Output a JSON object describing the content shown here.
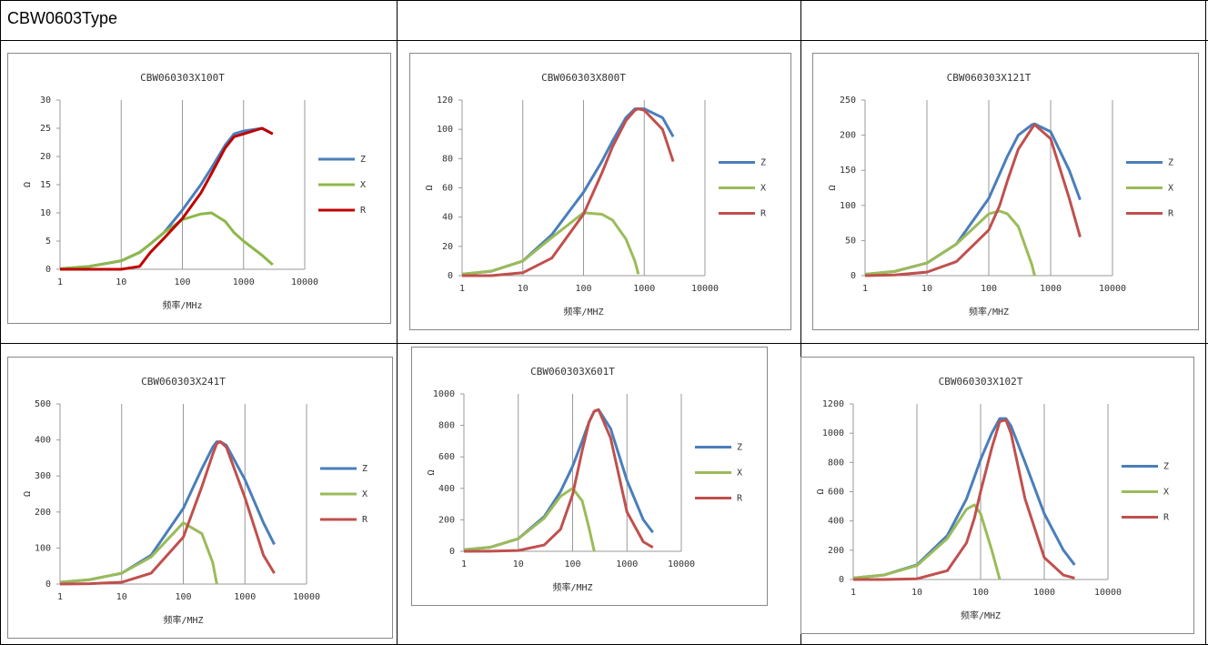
{
  "table": {
    "title": "CBW0603Type"
  },
  "chart_data": [
    {
      "type": "line",
      "title": "CBW060303X100T",
      "x_label": "频率/MHz",
      "y_label": "Ω",
      "xscale": "log",
      "grid": "x",
      "legend": "right",
      "xlim": [
        1,
        10000
      ],
      "xticks": [
        1,
        10,
        100,
        1000,
        10000
      ],
      "ylim": [
        0,
        30
      ],
      "yticks": [
        0,
        5,
        10,
        15,
        20,
        25,
        30
      ],
      "x": [
        1,
        3,
        10,
        20,
        30,
        50,
        100,
        200,
        300,
        500,
        700,
        1000,
        2000,
        3000
      ],
      "series": [
        {
          "name": "Z",
          "color": "#4a7ebb",
          "values": [
            0.1,
            0.5,
            1.5,
            3,
            4.5,
            6.5,
            10.5,
            15,
            18,
            22,
            24,
            24.5,
            25,
            24
          ]
        },
        {
          "name": "X",
          "color": "#8db84a",
          "values": [
            0.1,
            0.5,
            1.5,
            3,
            4.5,
            6.5,
            8.8,
            9.8,
            10,
            8.5,
            6.5,
            5,
            2.5,
            0.8
          ]
        },
        {
          "name": "R",
          "color": "#c00000",
          "values": [
            0,
            0,
            0,
            0.5,
            3,
            5.5,
            9,
            13.5,
            17,
            21.5,
            23.5,
            24,
            25,
            24
          ]
        }
      ]
    },
    {
      "type": "line",
      "title": "CBW060303X800T",
      "x_label": "频率/MHZ",
      "y_label": "Ω",
      "xscale": "log",
      "grid": "x",
      "legend": "right",
      "xlim": [
        1,
        10000
      ],
      "xticks": [
        1,
        10,
        100,
        1000,
        10000
      ],
      "ylim": [
        0,
        120
      ],
      "yticks": [
        0,
        20,
        40,
        60,
        80,
        100,
        120
      ],
      "x": [
        1,
        3,
        10,
        30,
        100,
        200,
        300,
        500,
        700,
        800,
        1000,
        2000,
        3000
      ],
      "series": [
        {
          "name": "Z",
          "color": "#4a7ebb",
          "values": [
            1,
            3,
            10,
            28,
            57,
            78,
            92,
            108,
            114,
            114,
            114,
            108,
            95
          ]
        },
        {
          "name": "X",
          "color": "#9bbb59",
          "values": [
            1,
            3,
            10,
            26,
            43,
            42,
            38,
            25,
            10,
            1,
            null,
            null,
            null
          ]
        },
        {
          "name": "R",
          "color": "#c0504d",
          "values": [
            0,
            0,
            2,
            12,
            42,
            70,
            88,
            106,
            113,
            114,
            113,
            100,
            78
          ]
        }
      ]
    },
    {
      "type": "line",
      "title": "CBW060303X121T",
      "x_label": "频率/MHZ",
      "y_label": "Ω",
      "xscale": "log",
      "grid": "x",
      "legend": "right",
      "xlim": [
        1,
        10000
      ],
      "xticks": [
        1,
        10,
        100,
        1000,
        10000
      ],
      "ylim": [
        0,
        250
      ],
      "yticks": [
        0,
        50,
        100,
        150,
        200,
        250
      ],
      "x": [
        1,
        3,
        10,
        30,
        100,
        150,
        200,
        300,
        500,
        550,
        1000,
        2000,
        3000
      ],
      "series": [
        {
          "name": "Z",
          "color": "#4a7ebb",
          "values": [
            2,
            6,
            18,
            45,
            110,
            145,
            170,
            200,
            215,
            216,
            205,
            150,
            108
          ]
        },
        {
          "name": "X",
          "color": "#9bbb59",
          "values": [
            2,
            6,
            18,
            45,
            88,
            92,
            88,
            70,
            15,
            0,
            null,
            null,
            null
          ]
        },
        {
          "name": "R",
          "color": "#c0504d",
          "values": [
            0,
            1,
            5,
            20,
            65,
            100,
            135,
            180,
            210,
            215,
            195,
            110,
            55
          ]
        }
      ]
    },
    {
      "type": "line",
      "title": "CBW060303X241T",
      "x_label": "频率/MHZ",
      "y_label": "Ω",
      "xscale": "log",
      "grid": "x",
      "legend": "right",
      "xlim": [
        1,
        10000
      ],
      "xticks": [
        1,
        10,
        100,
        1000,
        10000
      ],
      "ylim": [
        0,
        500
      ],
      "yticks": [
        0,
        100,
        200,
        300,
        400,
        500
      ],
      "x": [
        1,
        3,
        10,
        30,
        100,
        200,
        300,
        350,
        400,
        500,
        1000,
        2000,
        3000
      ],
      "series": [
        {
          "name": "Z",
          "color": "#4a7ebb",
          "values": [
            5,
            12,
            30,
            80,
            210,
            320,
            380,
            395,
            395,
            385,
            290,
            170,
            110
          ]
        },
        {
          "name": "X",
          "color": "#9bbb59",
          "values": [
            5,
            12,
            30,
            75,
            170,
            140,
            60,
            0,
            null,
            null,
            null,
            null,
            null
          ]
        },
        {
          "name": "R",
          "color": "#c0504d",
          "values": [
            0,
            1,
            5,
            30,
            130,
            270,
            360,
            390,
            395,
            380,
            240,
            80,
            30
          ]
        }
      ]
    },
    {
      "type": "line",
      "title": "CBW060303X601T",
      "x_label": "频率/MHZ",
      "y_label": "Ω",
      "xscale": "log",
      "grid": "x",
      "legend": "right",
      "xlim": [
        1,
        10000
      ],
      "xticks": [
        1,
        10,
        100,
        1000,
        10000
      ],
      "ylim": [
        0,
        1000
      ],
      "yticks": [
        0,
        200,
        400,
        600,
        800,
        1000
      ],
      "x": [
        1,
        3,
        10,
        30,
        60,
        100,
        150,
        200,
        250,
        300,
        500,
        1000,
        2000,
        3000
      ],
      "series": [
        {
          "name": "Z",
          "color": "#4a7ebb",
          "values": [
            10,
            25,
            80,
            220,
            380,
            540,
            700,
            820,
            890,
            900,
            780,
            450,
            200,
            120
          ]
        },
        {
          "name": "X",
          "color": "#9bbb59",
          "values": [
            10,
            25,
            80,
            210,
            350,
            400,
            320,
            150,
            0,
            null,
            null,
            null,
            null,
            null
          ]
        },
        {
          "name": "R",
          "color": "#c0504d",
          "values": [
            0,
            1,
            5,
            40,
            140,
            360,
            640,
            820,
            890,
            900,
            720,
            250,
            60,
            25
          ]
        }
      ]
    },
    {
      "type": "line",
      "title": "CBW060303X102T",
      "x_label": "频率/MHZ",
      "y_label": "Ω",
      "xscale": "log",
      "grid": "x",
      "legend": "right",
      "xlim": [
        1,
        10000
      ],
      "xticks": [
        1,
        10,
        100,
        1000,
        10000
      ],
      "ylim": [
        0,
        1200
      ],
      "yticks": [
        0,
        200,
        400,
        600,
        800,
        1000,
        1200
      ],
      "x": [
        1,
        3,
        10,
        30,
        60,
        80,
        100,
        150,
        200,
        250,
        300,
        500,
        1000,
        2000,
        3000
      ],
      "series": [
        {
          "name": "Z",
          "color": "#4a7ebb",
          "values": [
            10,
            30,
            100,
            300,
            550,
            700,
            820,
            1000,
            1100,
            1100,
            1050,
            800,
            450,
            200,
            100
          ]
        },
        {
          "name": "X",
          "color": "#9bbb59",
          "values": [
            10,
            30,
            95,
            280,
            480,
            510,
            450,
            200,
            0,
            null,
            null,
            null,
            null,
            null,
            null
          ]
        },
        {
          "name": "R",
          "color": "#c0504d",
          "values": [
            0,
            0,
            5,
            60,
            250,
            420,
            600,
            900,
            1080,
            1090,
            1000,
            550,
            150,
            30,
            10
          ]
        }
      ]
    }
  ]
}
